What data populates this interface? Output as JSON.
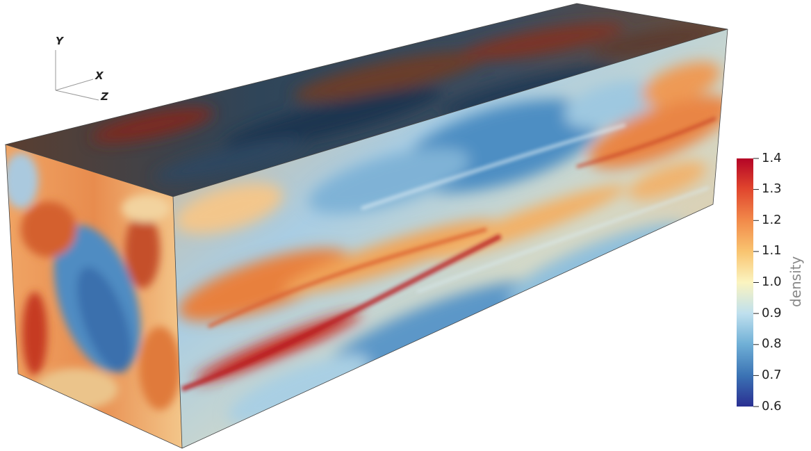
{
  "orientation_axes": {
    "y_label": "Y",
    "x_label": "X",
    "z_label": "Z"
  },
  "colorbar": {
    "title": "density",
    "range": [
      0.6,
      1.4
    ],
    "ticks": [
      "1.4",
      "1.3",
      "1.2",
      "1.1",
      "1.0",
      "0.9",
      "0.8",
      "0.7",
      "0.6"
    ],
    "colors": {
      "low": "#313695",
      "mid_low": "#4b86bd",
      "mid": "#fefec0",
      "mid_high": "#f58c4c",
      "high": "#c2101e"
    }
  },
  "volume": {
    "description_colors": {
      "top_face_tint": "#2e3a4a",
      "front_base": "#9cc3dd",
      "warm_band": "#e4743b",
      "cool_band": "#4a8ec1"
    }
  }
}
